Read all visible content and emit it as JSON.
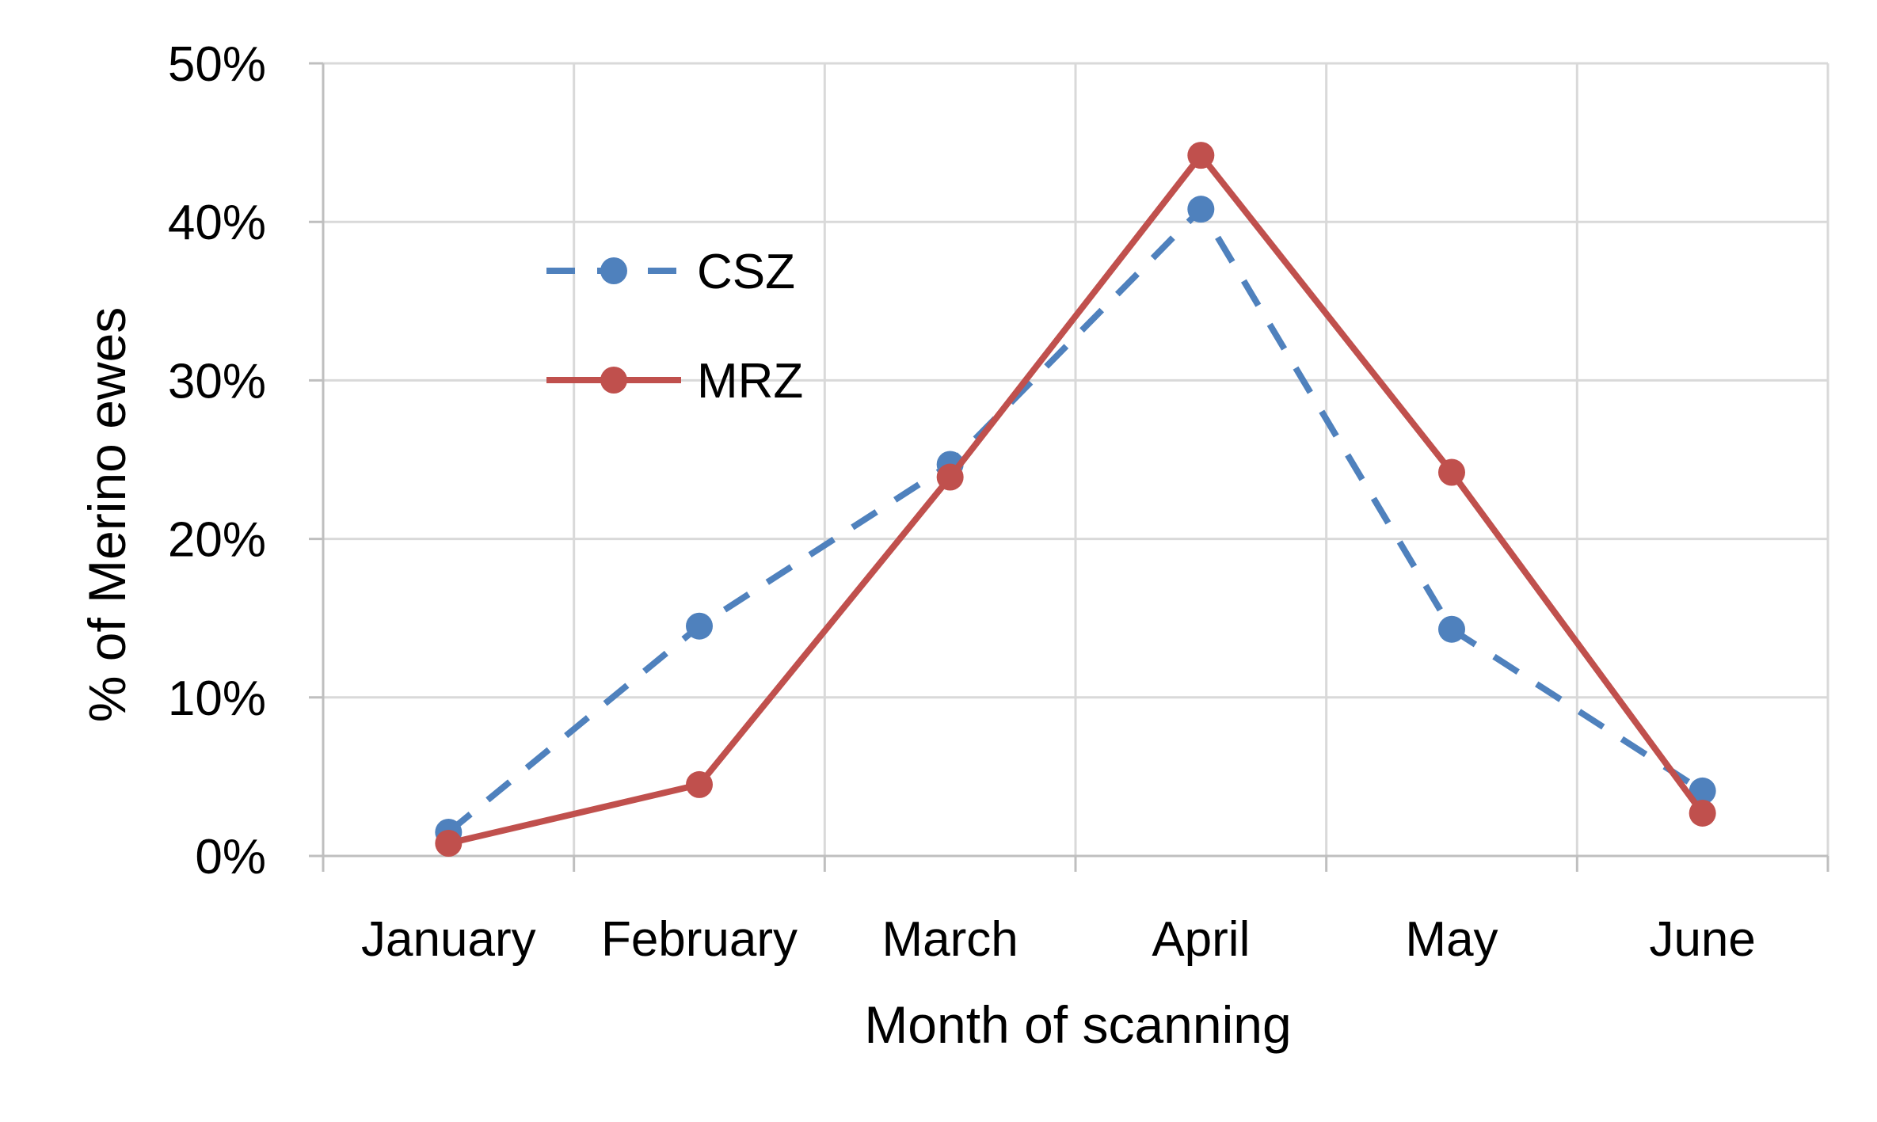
{
  "chart_data": {
    "type": "line",
    "categories": [
      "January",
      "February",
      "March",
      "April",
      "May",
      "June"
    ],
    "series": [
      {
        "name": "CSZ",
        "values": [
          1.5,
          14.5,
          24.7,
          40.8,
          14.3,
          4.1
        ],
        "color": "#4f81bd",
        "line_style": "dashed"
      },
      {
        "name": "MRZ",
        "values": [
          0.8,
          4.5,
          23.9,
          44.2,
          24.2,
          2.7
        ],
        "color": "#c0504d",
        "line_style": "solid"
      }
    ],
    "xlabel": "Month of scanning",
    "ylabel": "% of Merino ewes",
    "ylim": [
      0,
      50
    ],
    "yticks": [
      "0%",
      "10%",
      "20%",
      "30%",
      "40%",
      "50%"
    ],
    "grid": true,
    "legend_position": "top-left"
  }
}
